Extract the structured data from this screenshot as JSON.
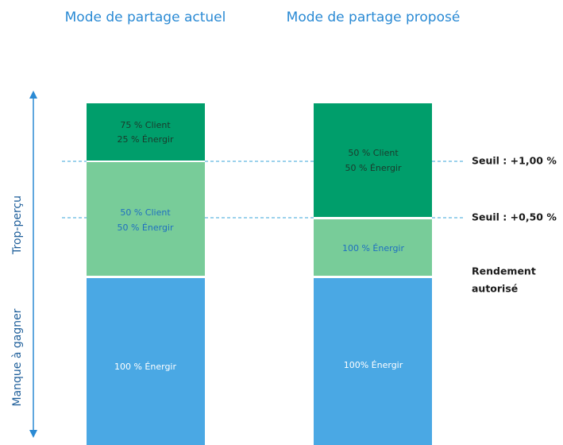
{
  "titles": [
    "Mode de partage actuel",
    "Mode de partage proposé"
  ],
  "axis": {
    "top_label": "Trop-perçu",
    "bottom_label": "Manque à gagner"
  },
  "columns": [
    {
      "segments": [
        {
          "lines": [
            "75 % Client",
            "25 % Énergir"
          ]
        },
        {
          "lines": [
            "50 % Client",
            "50 % Énergir"
          ]
        },
        {
          "lines": [
            "100 % Énergir"
          ]
        }
      ]
    },
    {
      "segments": [
        {
          "lines": [
            "50 % Client",
            "50 % Énergir"
          ]
        },
        {
          "lines": [
            "100 % Énergir"
          ]
        },
        {
          "lines": [
            "100% Énergir"
          ]
        }
      ]
    }
  ],
  "thresholds": [
    "Seuil : +1,00 %",
    "Seuil : +0,50 %"
  ],
  "baseline_label": [
    "Rendement",
    "autorisé"
  ]
}
